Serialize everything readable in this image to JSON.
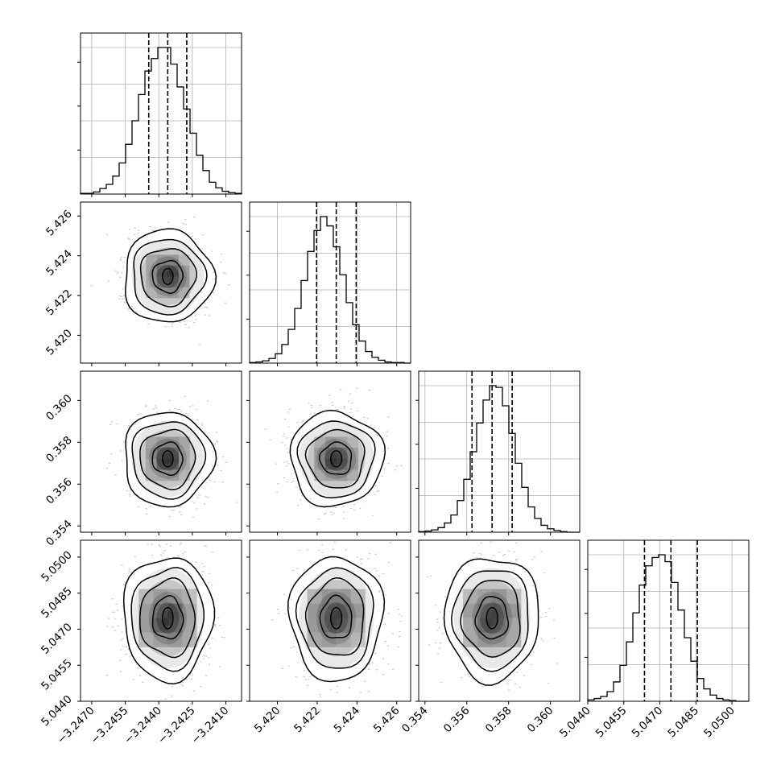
{
  "chart_data": {
    "type": "corner",
    "parameters": [
      {
        "id": "p0",
        "range": [
          -3.2475,
          -3.2403
        ],
        "ticks": [
          -3.247,
          -3.2455,
          -3.244,
          -3.2425,
          -3.241
        ],
        "tick_labels": [
          "−3.2470",
          "−3.2455",
          "−3.2440",
          "−3.2425",
          "−3.2410"
        ],
        "quantiles": [
          -3.24445,
          -3.2436,
          -3.24275
        ],
        "hist_edges": [
          -3.2475,
          -3.2403
        ],
        "hist_counts": [
          1,
          1,
          3,
          8,
          14,
          26,
          45,
          72,
          106,
          144,
          178,
          196,
          212,
          212,
          188,
          155,
          123,
          88,
          56,
          34,
          17,
          9,
          4,
          2,
          1
        ],
        "hist_max": 212
      },
      {
        "id": "p1",
        "range": [
          5.4186,
          5.4267
        ],
        "ticks": [
          5.42,
          5.422,
          5.424,
          5.426
        ],
        "tick_labels": [
          "5.420",
          "5.422",
          "5.424",
          "5.426"
        ],
        "quantiles": [
          5.42197,
          5.42296,
          5.42396
        ],
        "hist_edges": [
          5.4186,
          5.4267
        ],
        "hist_counts": [
          1,
          2,
          4,
          8,
          16,
          32,
          58,
          94,
          142,
          192,
          228,
          252,
          236,
          200,
          152,
          104,
          66,
          38,
          20,
          10,
          5,
          2,
          1,
          1,
          0
        ],
        "hist_max": 252
      },
      {
        "id": "p2",
        "range": [
          0.3537,
          0.3614
        ],
        "ticks": [
          0.354,
          0.356,
          0.358,
          0.36
        ],
        "tick_labels": [
          "0.354",
          "0.356",
          "0.358",
          "0.360"
        ],
        "quantiles": [
          0.35625,
          0.35721,
          0.35817
        ],
        "hist_edges": [
          0.3537,
          0.3614
        ],
        "hist_counts": [
          1,
          2,
          4,
          8,
          16,
          30,
          55,
          92,
          140,
          190,
          230,
          255,
          252,
          220,
          172,
          120,
          78,
          44,
          24,
          12,
          6,
          3,
          1,
          0,
          0
        ],
        "hist_max": 255
      },
      {
        "id": "p3",
        "range": [
          5.044,
          5.0507
        ],
        "ticks": [
          5.044,
          5.0455,
          5.047,
          5.0485,
          5.05
        ],
        "tick_labels": [
          "5.0440",
          "5.0455",
          "5.0470",
          "5.0485",
          "5.0500"
        ],
        "quantiles": [
          5.04636,
          5.04746,
          5.04856
        ],
        "hist_edges": [
          5.044,
          5.0507
        ],
        "hist_counts": [
          2,
          4,
          7,
          14,
          28,
          52,
          86,
          128,
          168,
          196,
          208,
          212,
          202,
          172,
          132,
          92,
          58,
          33,
          18,
          9,
          4,
          2,
          1,
          0,
          0
        ],
        "hist_max": 212
      }
    ],
    "contour_levels": [
      0.12,
      0.39,
      0.68,
      0.86
    ],
    "grid": true,
    "legend": "none"
  }
}
